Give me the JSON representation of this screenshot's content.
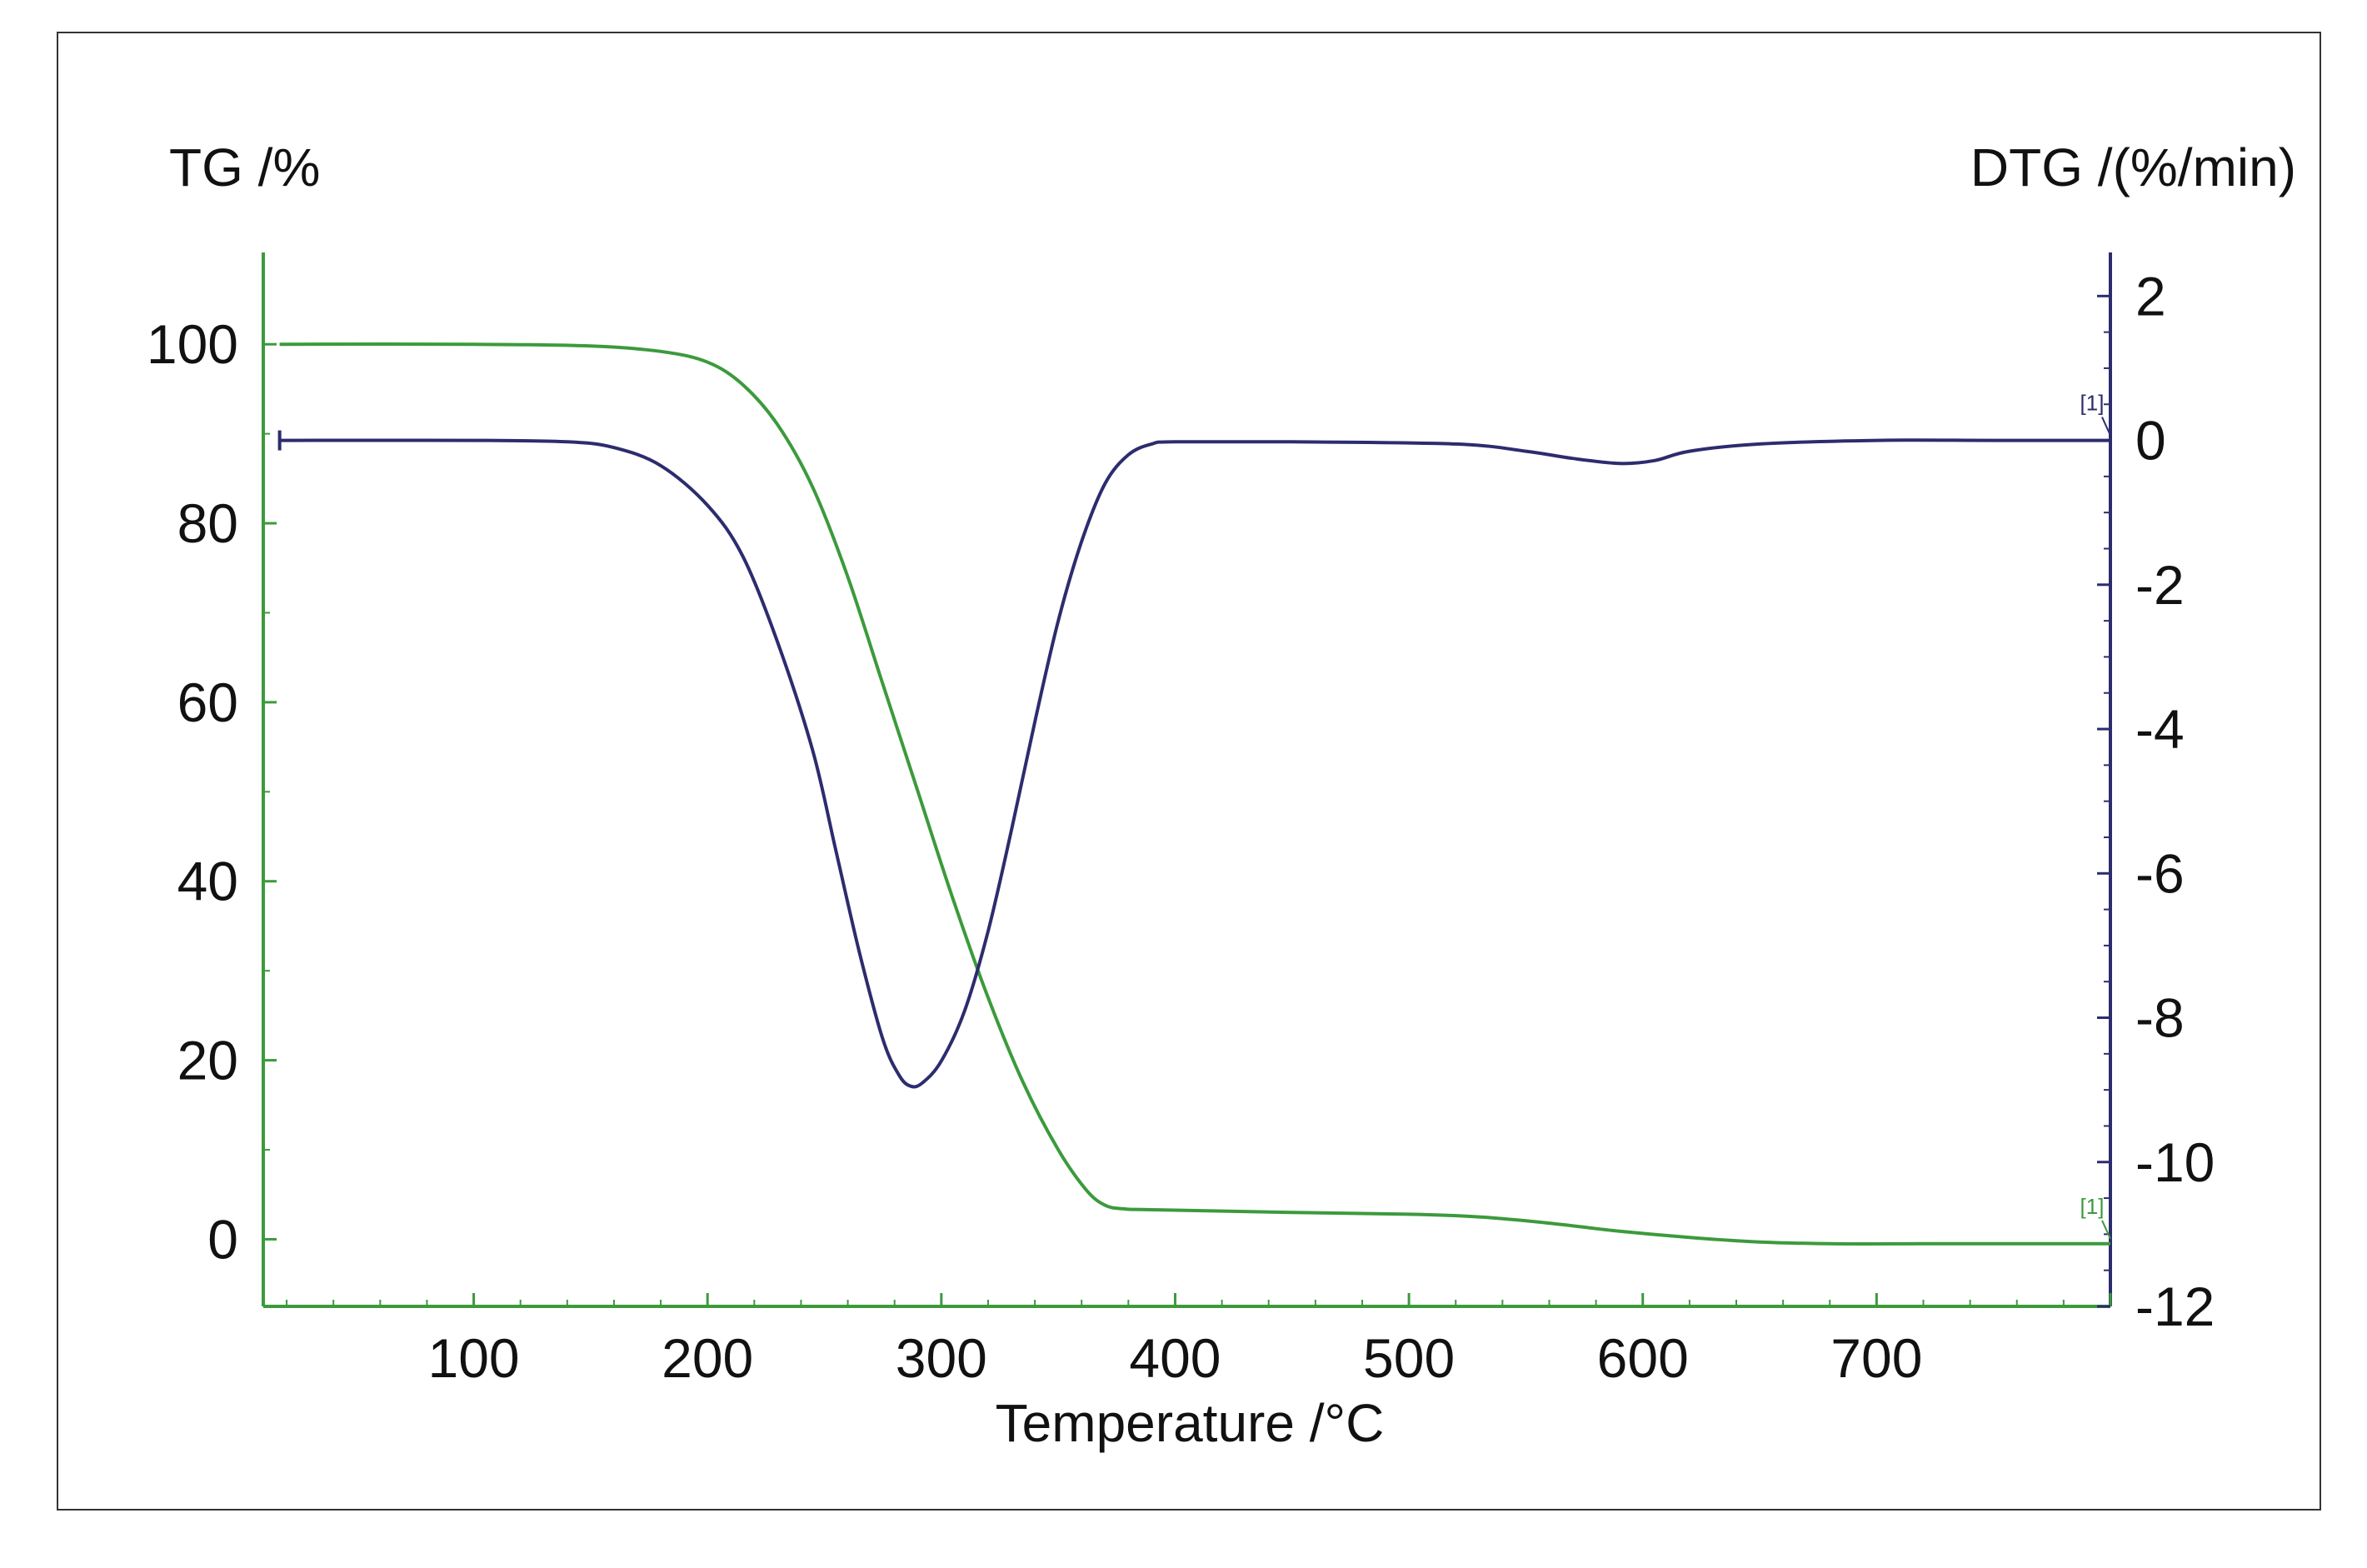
{
  "chart_data": {
    "type": "line",
    "xlabel": "Temperature /°C",
    "y1label": "TG /%",
    "y2label": "DTG /(%/min)",
    "xlim": [
      10,
      800
    ],
    "xticks": [
      100,
      200,
      300,
      400,
      500,
      600,
      700
    ],
    "y1lim": [
      -7.5,
      107
    ],
    "y1ticks": [
      0,
      20,
      40,
      60,
      80,
      100
    ],
    "y2lim": [
      -12,
      2.2
    ],
    "y2ticks": [
      2,
      0,
      -2,
      -4,
      -6,
      -8,
      -10,
      -12
    ],
    "grid": false,
    "series": [
      {
        "axis": "left",
        "color": "#3c9a3c",
        "marker": "[1]",
        "x": [
          17,
          100,
          150,
          180,
          200,
          215,
          230,
          245,
          260,
          275,
          290,
          305,
          320,
          335,
          350,
          362,
          370,
          378,
          390,
          450,
          500,
          530,
          560,
          590,
          620,
          650,
          680,
          720,
          760,
          800
        ],
        "y": [
          100,
          100,
          99.8,
          99.2,
          98,
          95.5,
          91,
          84,
          74,
          62,
          50,
          38,
          27,
          17.5,
          10,
          5.5,
          3.8,
          3.4,
          3.3,
          3.0,
          2.8,
          2.5,
          1.8,
          0.9,
          0.2,
          -0.3,
          -0.5,
          -0.5,
          -0.5,
          -0.5
        ],
        "errorbar": {
          "x": 800,
          "y": -0.5,
          "kind": "end"
        }
      },
      {
        "axis": "right",
        "color": "#2c2c6e",
        "marker": "[1]",
        "x": [
          17,
          100,
          140,
          160,
          180,
          200,
          215,
          230,
          245,
          255,
          265,
          275,
          282,
          287,
          292,
          300,
          310,
          320,
          330,
          340,
          350,
          360,
          370,
          380,
          390,
          400,
          450,
          520,
          550,
          570,
          590,
          605,
          620,
          650,
          700,
          750,
          800
        ],
        "y": [
          0,
          0,
          -0.02,
          -0.1,
          -0.35,
          -0.9,
          -1.6,
          -2.8,
          -4.3,
          -5.7,
          -7.1,
          -8.3,
          -8.8,
          -8.95,
          -8.9,
          -8.6,
          -7.9,
          -6.8,
          -5.4,
          -3.9,
          -2.5,
          -1.4,
          -0.6,
          -0.2,
          -0.05,
          -0.02,
          -0.02,
          -0.05,
          -0.15,
          -0.25,
          -0.32,
          -0.28,
          -0.15,
          -0.05,
          0,
          0,
          0
        ],
        "errorbar": {
          "x": [
            17,
            800
          ],
          "y": 0,
          "kind": "endpoints"
        }
      }
    ]
  }
}
